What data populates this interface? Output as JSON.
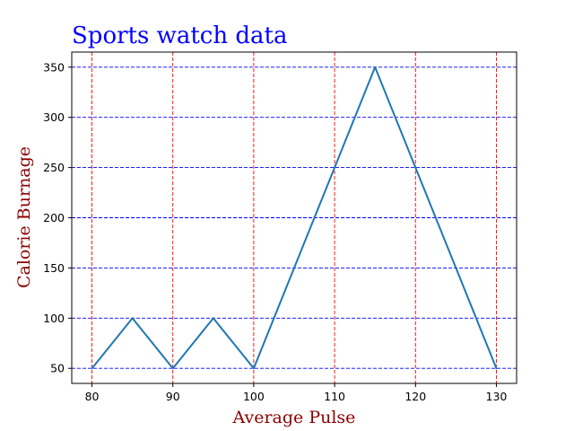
{
  "chart_data": {
    "type": "line",
    "title": "Sports watch data",
    "xlabel": "Average Pulse",
    "ylabel": "Calorie Burnage",
    "x": [
      80,
      85,
      90,
      95,
      100,
      105,
      110,
      115,
      120,
      125,
      130
    ],
    "series": [
      {
        "values": [
          50,
          100,
          50,
          100,
          50,
          150,
          250,
          350,
          250,
          150,
          50
        ]
      }
    ],
    "xticks": [
      80,
      90,
      100,
      110,
      120,
      130
    ],
    "yticks": [
      50,
      100,
      150,
      200,
      250,
      300,
      350
    ],
    "xlim": [
      77.5,
      132.5
    ],
    "ylim": [
      35,
      365
    ],
    "grid": true,
    "legend": "none"
  },
  "colors": {
    "title": "#0000ff",
    "axis_label": "#8b0000",
    "line": "#1f77b4",
    "x_grid": "#ff0000",
    "y_grid": "#0000ff",
    "axis": "#000000"
  }
}
